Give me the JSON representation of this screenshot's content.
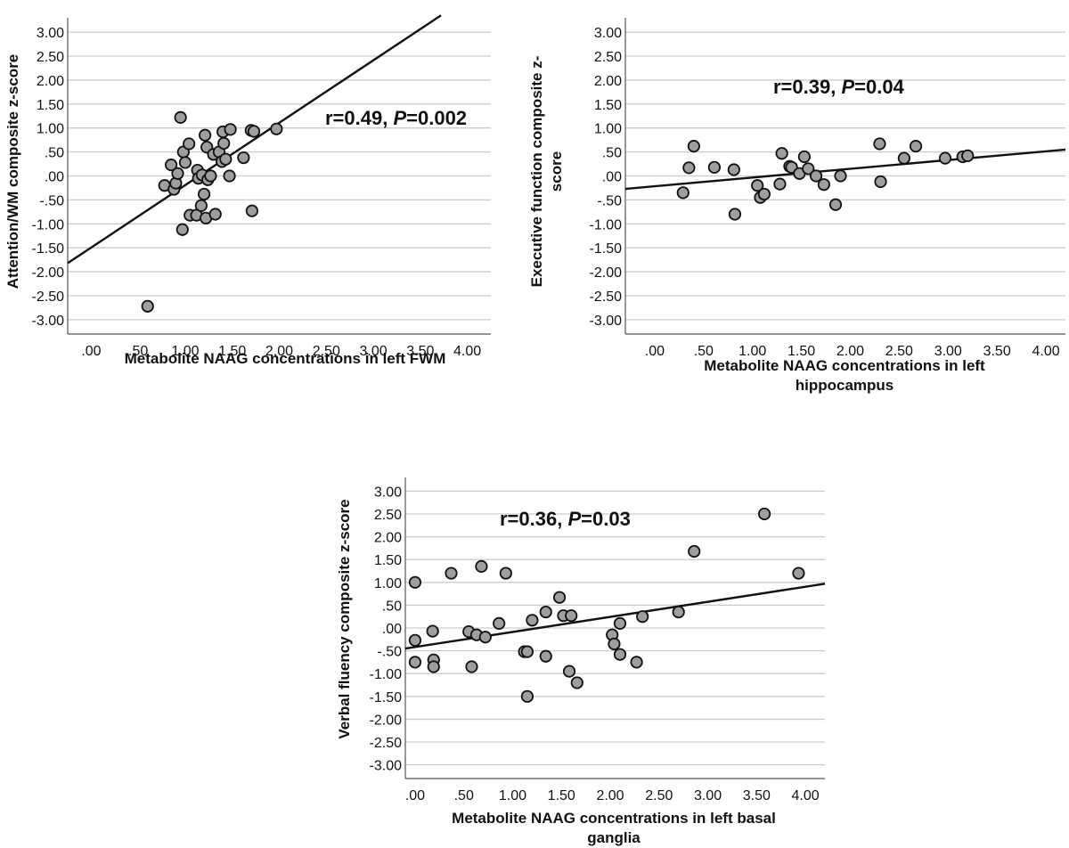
{
  "chart_data": [
    {
      "type": "scatter",
      "xlabel": [
        "Metabolite NAAG concentrations in left FWM"
      ],
      "ylabel": [
        "Attention/WM composite z-score"
      ],
      "annotation": {
        "prefix": "r=0.49, ",
        "p_symbol": "P",
        "suffix": "=0.002"
      },
      "xlim": [
        -0.25,
        4.25
      ],
      "ylim": [
        -3.3,
        3.3
      ],
      "xticks": [
        ".00",
        ".50",
        "1.00",
        "1.50",
        "2.00",
        "2.50",
        "3.00",
        "3.50",
        "4.00"
      ],
      "yticks": [
        "3.00",
        "2.50",
        "2.00",
        "1.50",
        "1.00",
        ".50",
        ".00",
        "-.50",
        "-1.00",
        "-1.50",
        "-2.00",
        "-2.50",
        "-3.00"
      ],
      "fit_line": {
        "x": [
          -0.25,
          3.72
        ],
        "y": [
          -1.82,
          3.35
        ]
      },
      "points": [
        [
          0.6,
          -2.72
        ],
        [
          0.78,
          -0.2
        ],
        [
          0.85,
          0.23
        ],
        [
          0.88,
          -0.28
        ],
        [
          0.9,
          -0.15
        ],
        [
          0.92,
          0.05
        ],
        [
          0.95,
          1.22
        ],
        [
          0.97,
          -1.12
        ],
        [
          0.98,
          0.5
        ],
        [
          1.0,
          0.28
        ],
        [
          1.04,
          0.67
        ],
        [
          1.05,
          -0.82
        ],
        [
          1.12,
          -0.82
        ],
        [
          1.13,
          0.12
        ],
        [
          1.14,
          -0.05
        ],
        [
          1.17,
          -0.62
        ],
        [
          1.18,
          0.02
        ],
        [
          1.2,
          -0.38
        ],
        [
          1.21,
          0.85
        ],
        [
          1.22,
          -0.88
        ],
        [
          1.23,
          0.6
        ],
        [
          1.24,
          -0.08
        ],
        [
          1.27,
          0.0
        ],
        [
          1.3,
          0.45
        ],
        [
          1.32,
          -0.8
        ],
        [
          1.36,
          0.5
        ],
        [
          1.39,
          0.3
        ],
        [
          1.4,
          0.92
        ],
        [
          1.41,
          0.68
        ],
        [
          1.43,
          0.35
        ],
        [
          1.47,
          0.0
        ],
        [
          1.48,
          0.97
        ],
        [
          1.62,
          0.38
        ],
        [
          1.7,
          0.95
        ],
        [
          1.71,
          -0.73
        ],
        [
          1.73,
          0.93
        ],
        [
          1.97,
          0.98
        ]
      ]
    },
    {
      "type": "scatter",
      "xlabel": [
        "Metabolite NAAG concentrations in left",
        "hippocampus"
      ],
      "ylabel": [
        "Executive function composite z-",
        "score"
      ],
      "annotation": {
        "prefix": "r=0.39, ",
        "p_symbol": "P",
        "suffix": "=0.04"
      },
      "xlim": [
        -0.3,
        4.2
      ],
      "ylim": [
        -3.3,
        3.3
      ],
      "xticks": [
        ".00",
        ".50",
        "1.00",
        "1.50",
        "2.00",
        "2.50",
        "3.00",
        "3.50",
        "4.00"
      ],
      "yticks": [
        "3.00",
        "2.50",
        "2.00",
        "1.50",
        "1.00",
        ".50",
        ".00",
        "-.50",
        "-1.00",
        "-1.50",
        "-2.00",
        "-2.50",
        "-3.00"
      ],
      "fit_line": {
        "x": [
          -0.3,
          4.2
        ],
        "y": [
          -0.27,
          0.55
        ]
      },
      "points": [
        [
          0.29,
          -0.35
        ],
        [
          0.35,
          0.17
        ],
        [
          0.4,
          0.62
        ],
        [
          0.61,
          0.18
        ],
        [
          0.81,
          0.13
        ],
        [
          0.82,
          -0.8
        ],
        [
          1.05,
          -0.2
        ],
        [
          1.08,
          -0.45
        ],
        [
          1.12,
          -0.38
        ],
        [
          1.28,
          -0.17
        ],
        [
          1.3,
          0.47
        ],
        [
          1.38,
          0.2
        ],
        [
          1.4,
          0.18
        ],
        [
          1.48,
          0.05
        ],
        [
          1.53,
          0.4
        ],
        [
          1.57,
          0.15
        ],
        [
          1.65,
          0.0
        ],
        [
          1.73,
          -0.18
        ],
        [
          1.85,
          -0.6
        ],
        [
          1.9,
          0.0
        ],
        [
          2.3,
          0.67
        ],
        [
          2.31,
          -0.12
        ],
        [
          2.55,
          0.37
        ],
        [
          2.67,
          0.62
        ],
        [
          2.97,
          0.37
        ],
        [
          3.15,
          0.4
        ],
        [
          3.2,
          0.42
        ]
      ]
    },
    {
      "type": "scatter",
      "xlabel": [
        "Metabolite NAAG concentrations in left basal",
        "ganglia"
      ],
      "ylabel": [
        "Verbal fluency composite z-score"
      ],
      "annotation": {
        "prefix": "r=0.36, ",
        "p_symbol": "P",
        "suffix": "=0.03"
      },
      "xlim": [
        -0.1,
        4.2
      ],
      "ylim": [
        -3.3,
        3.3
      ],
      "xticks": [
        ".00",
        ".50",
        "1.00",
        "1.50",
        "2.00",
        "2.50",
        "3.00",
        "3.50",
        "4.00"
      ],
      "yticks": [
        "3.00",
        "2.50",
        "2.00",
        "1.50",
        "1.00",
        ".50",
        ".00",
        "-.50",
        "-1.00",
        "-1.50",
        "-2.00",
        "-2.50",
        "-3.00"
      ],
      "fit_line": {
        "x": [
          -0.1,
          4.2
        ],
        "y": [
          -0.45,
          0.97
        ]
      },
      "points": [
        [
          0.0,
          1.0
        ],
        [
          0.0,
          -0.27
        ],
        [
          0.0,
          -0.75
        ],
        [
          0.18,
          -0.07
        ],
        [
          0.19,
          -0.7
        ],
        [
          0.19,
          -0.85
        ],
        [
          0.37,
          1.2
        ],
        [
          0.55,
          -0.08
        ],
        [
          0.58,
          -0.85
        ],
        [
          0.63,
          -0.15
        ],
        [
          0.68,
          1.35
        ],
        [
          0.72,
          -0.2
        ],
        [
          0.86,
          0.1
        ],
        [
          0.93,
          1.2
        ],
        [
          1.12,
          -0.52
        ],
        [
          1.15,
          -0.52
        ],
        [
          1.15,
          -1.5
        ],
        [
          1.2,
          0.17
        ],
        [
          1.34,
          0.35
        ],
        [
          1.34,
          -0.62
        ],
        [
          1.48,
          0.67
        ],
        [
          1.52,
          0.27
        ],
        [
          1.58,
          -0.95
        ],
        [
          1.6,
          0.27
        ],
        [
          1.66,
          -1.2
        ],
        [
          2.02,
          -0.15
        ],
        [
          2.04,
          -0.35
        ],
        [
          2.1,
          0.1
        ],
        [
          2.1,
          -0.58
        ],
        [
          2.27,
          -0.75
        ],
        [
          2.33,
          0.25
        ],
        [
          2.7,
          0.35
        ],
        [
          2.86,
          1.68
        ],
        [
          3.58,
          2.5
        ],
        [
          3.93,
          1.2
        ]
      ]
    }
  ]
}
